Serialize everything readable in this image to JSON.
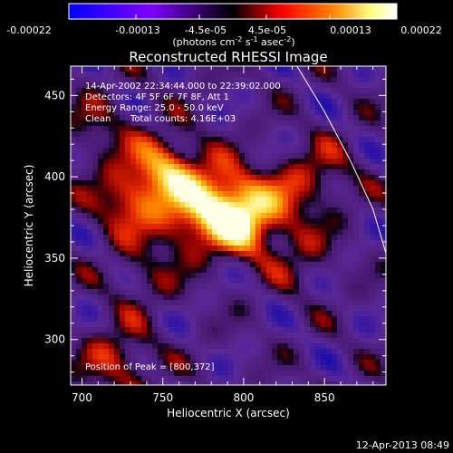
{
  "colorbar": {
    "tick_labels": [
      "-0.00022",
      "-0.00013",
      "-4.5e-05",
      "4.5e-05",
      "0.00013",
      "0.00022"
    ],
    "unit_main": "(photons cm",
    "unit_exp1": "-2",
    "unit_mid": " s",
    "unit_exp2": "-1",
    "unit_end": " asec",
    "unit_exp3": "-2",
    "unit_close": ")",
    "range": [
      -0.00022,
      0.00022
    ],
    "colors": [
      "#0000ff",
      "#7f00ff",
      "#000000",
      "#ff0000",
      "#ff7f00",
      "#ffff80",
      "#ffffff"
    ]
  },
  "annotations": {
    "time_range": "14-Apr-2002 22:34:44.000 to 22:39:02.000",
    "detectors": "Detectors: 4F 5F 6F 7F 8F, Att 1",
    "energy_range": "Energy Range: 25.0 - 50.0 keV",
    "method": "Clean",
    "total_counts": "Total counts: 4.16E+03",
    "peak_position": "Position of Peak = [800,372]"
  },
  "footer": {
    "timestamp": "12-Apr-2013 08:49"
  },
  "chart_data": {
    "type": "heatmap",
    "title": "Reconstructed RHESSI Image",
    "xlabel": "Heliocentric X (arcsec)",
    "ylabel": "Heliocentric Y (arcsec)",
    "xlim": [
      693,
      888
    ],
    "ylim": [
      272,
      468
    ],
    "x_ticks": [
      700,
      750,
      800,
      850
    ],
    "y_ticks": [
      300,
      350,
      400,
      450
    ],
    "peak": [
      800,
      372
    ],
    "sources": [
      {
        "x": 800,
        "y": 372,
        "intensity": 1.0
      },
      {
        "x": 752,
        "y": 405,
        "intensity": 0.85
      },
      {
        "x": 785,
        "y": 388,
        "intensity": 0.8
      },
      {
        "x": 728,
        "y": 385,
        "intensity": 0.65
      },
      {
        "x": 765,
        "y": 372,
        "intensity": 0.6
      },
      {
        "x": 722,
        "y": 287,
        "intensity": 0.55
      },
      {
        "x": 827,
        "y": 388,
        "intensity": 0.4
      },
      {
        "x": 850,
        "y": 403,
        "intensity": 0.35
      },
      {
        "x": 710,
        "y": 430,
        "intensity": 0.35
      },
      {
        "x": 835,
        "y": 352,
        "intensity": 0.3
      },
      {
        "x": 738,
        "y": 338,
        "intensity": 0.3
      }
    ],
    "limb_curve": [
      [
        833,
        468
      ],
      [
        850,
        440
      ],
      [
        866,
        410
      ],
      [
        880,
        380
      ],
      [
        888,
        353
      ]
    ]
  }
}
